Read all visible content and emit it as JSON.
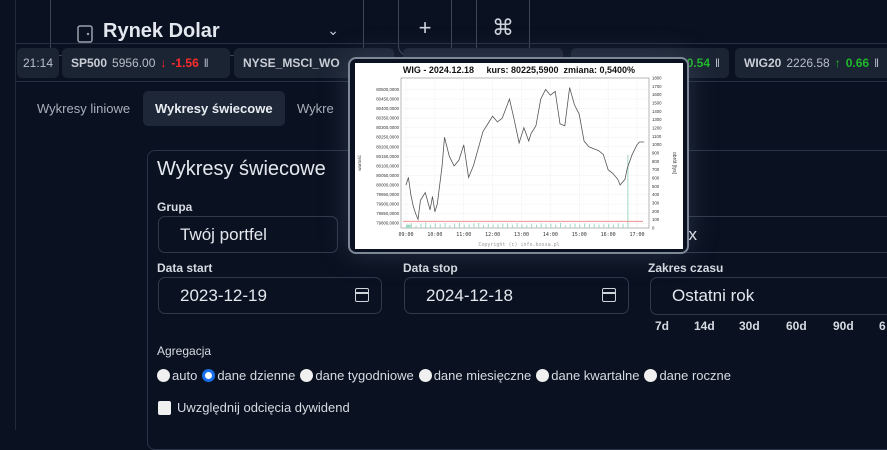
{
  "header": {
    "selector_title": "Rynek Dolar",
    "selector_icon": "wallet-icon",
    "add_icon": "+",
    "cmd_icon": "⌘"
  },
  "ticker": {
    "time": "21:14",
    "items": [
      {
        "symbol": "SP500",
        "value": "5956.00",
        "direction": "down",
        "change": "-1.56"
      },
      {
        "symbol": "NYSE_MSCI_WO",
        "value": "",
        "direction": "",
        "change": ""
      },
      {
        "symbol": "",
        "value": "",
        "direction": "up",
        "change": "0.54"
      },
      {
        "symbol": "WIG20",
        "value": "2226.58",
        "direction": "up",
        "change": "0.66"
      }
    ],
    "colors": {
      "down": "#ff2b2b",
      "up": "#1fb82b"
    }
  },
  "tabs": [
    {
      "label": "Wykresy liniowe",
      "active": false
    },
    {
      "label": "Wykresy świecowe",
      "active": true
    },
    {
      "label": "Wykre",
      "active": false
    }
  ],
  "form": {
    "title": "Wykresy świecowe",
    "group_label": "Grupa",
    "group_value": "Twój portfel",
    "index_value_partial": "ex",
    "start_label": "Data start",
    "start_value": "2023-12-19",
    "stop_label": "Data stop",
    "stop_value": "2024-12-18",
    "range_label": "Zakres czasu",
    "range_value": "Ostatni rok",
    "quick_ranges": [
      "7d",
      "14d",
      "30d",
      "60d",
      "90d",
      "6"
    ],
    "aggregation_label": "Agregacja",
    "aggregation_options": [
      "auto",
      "dane dzienne",
      "dane tygodniowe",
      "dane miesięczne",
      "dane kwartalne",
      "dane roczne"
    ],
    "aggregation_selected": "dane dzienne",
    "dividend_label": "Uwzględnij odcięcia dywidend",
    "dividend_checked": false,
    "accent": "#1a6ee8"
  },
  "popup": {
    "title": "WIG - 2024.12.18     kurs: 80225,5900  zmiana: 0,5400%",
    "copyright": "Copyright (c) info.bossa.pl",
    "left_axis_label": "wartość",
    "right_axis_label": "obrót [tys]",
    "left_ticks": [
      "79800,0000",
      "79850,0000",
      "79900,0000",
      "79950,0000",
      "80000,0000",
      "80050,0000",
      "80100,0000",
      "80150,0000",
      "80200,0000",
      "80250,0000",
      "80300,0000",
      "80350,0000",
      "80400,0000",
      "80450,0000",
      "80500,0000"
    ],
    "right_ticks": [
      "0",
      "100",
      "200",
      "300",
      "400",
      "500",
      "600",
      "700",
      "800",
      "900",
      "1000",
      "1100",
      "1200",
      "1300",
      "1400",
      "1500",
      "1600",
      "1700",
      "1800"
    ],
    "x_ticks": [
      "09:00",
      "10:00",
      "11:00",
      "12:00",
      "13:00",
      "14:00",
      "15:00",
      "16:00",
      "17:00"
    ],
    "chart_data": {
      "type": "line",
      "left_ylim": [
        79775,
        80560
      ],
      "right_ylim": [
        0,
        1800
      ],
      "price": {
        "x": [
          "09:00",
          "09:05",
          "09:10",
          "09:15",
          "09:20",
          "09:25",
          "09:30",
          "09:40",
          "09:50",
          "09:55",
          "10:00",
          "10:05",
          "10:15",
          "10:20",
          "10:30",
          "10:40",
          "10:50",
          "11:00",
          "11:10",
          "11:20",
          "11:30",
          "11:40",
          "11:50",
          "12:00",
          "12:10",
          "12:20",
          "12:35",
          "12:45",
          "12:55",
          "13:05",
          "13:15",
          "13:20",
          "13:30",
          "13:40",
          "13:50",
          "14:00",
          "14:10",
          "14:20",
          "14:30",
          "14:40",
          "14:50",
          "15:00",
          "15:10",
          "15:20",
          "15:30",
          "15:40",
          "15:50",
          "16:00",
          "16:10",
          "16:20",
          "16:25",
          "16:35",
          "16:40",
          "16:50",
          "17:00",
          "17:05",
          "17:15"
        ],
        "y": [
          80000,
          80040,
          79950,
          79890,
          79850,
          79820,
          79920,
          79960,
          79870,
          79940,
          79860,
          79900,
          80100,
          80250,
          80150,
          80100,
          80130,
          80210,
          80040,
          80100,
          80190,
          80280,
          80320,
          80360,
          80330,
          80350,
          80450,
          80340,
          80220,
          80300,
          80230,
          80270,
          80310,
          80450,
          80500,
          80470,
          80490,
          80320,
          80310,
          80510,
          80420,
          80370,
          80230,
          80200,
          80190,
          80180,
          80160,
          80080,
          80060,
          80030,
          80000,
          80030,
          80090,
          80160,
          80210,
          80225,
          80225
        ],
        "color": "#555555"
      },
      "volume": {
        "x_step_minutes": 10,
        "start": "09:00",
        "y": [
          40,
          60,
          30,
          50,
          70,
          40,
          55,
          45,
          60,
          35,
          50,
          65,
          40,
          45,
          55,
          60,
          35,
          50,
          40,
          45,
          50,
          55,
          40,
          60,
          45,
          35,
          50,
          40,
          55,
          45,
          50,
          40,
          60,
          35,
          45,
          50,
          40,
          55,
          45,
          50,
          40,
          45,
          50,
          40,
          55,
          45,
          880,
          0
        ],
        "color": "#9fd8c0"
      },
      "threshold": {
        "y": 80,
        "color": "#f08080"
      },
      "grid": true
    }
  }
}
